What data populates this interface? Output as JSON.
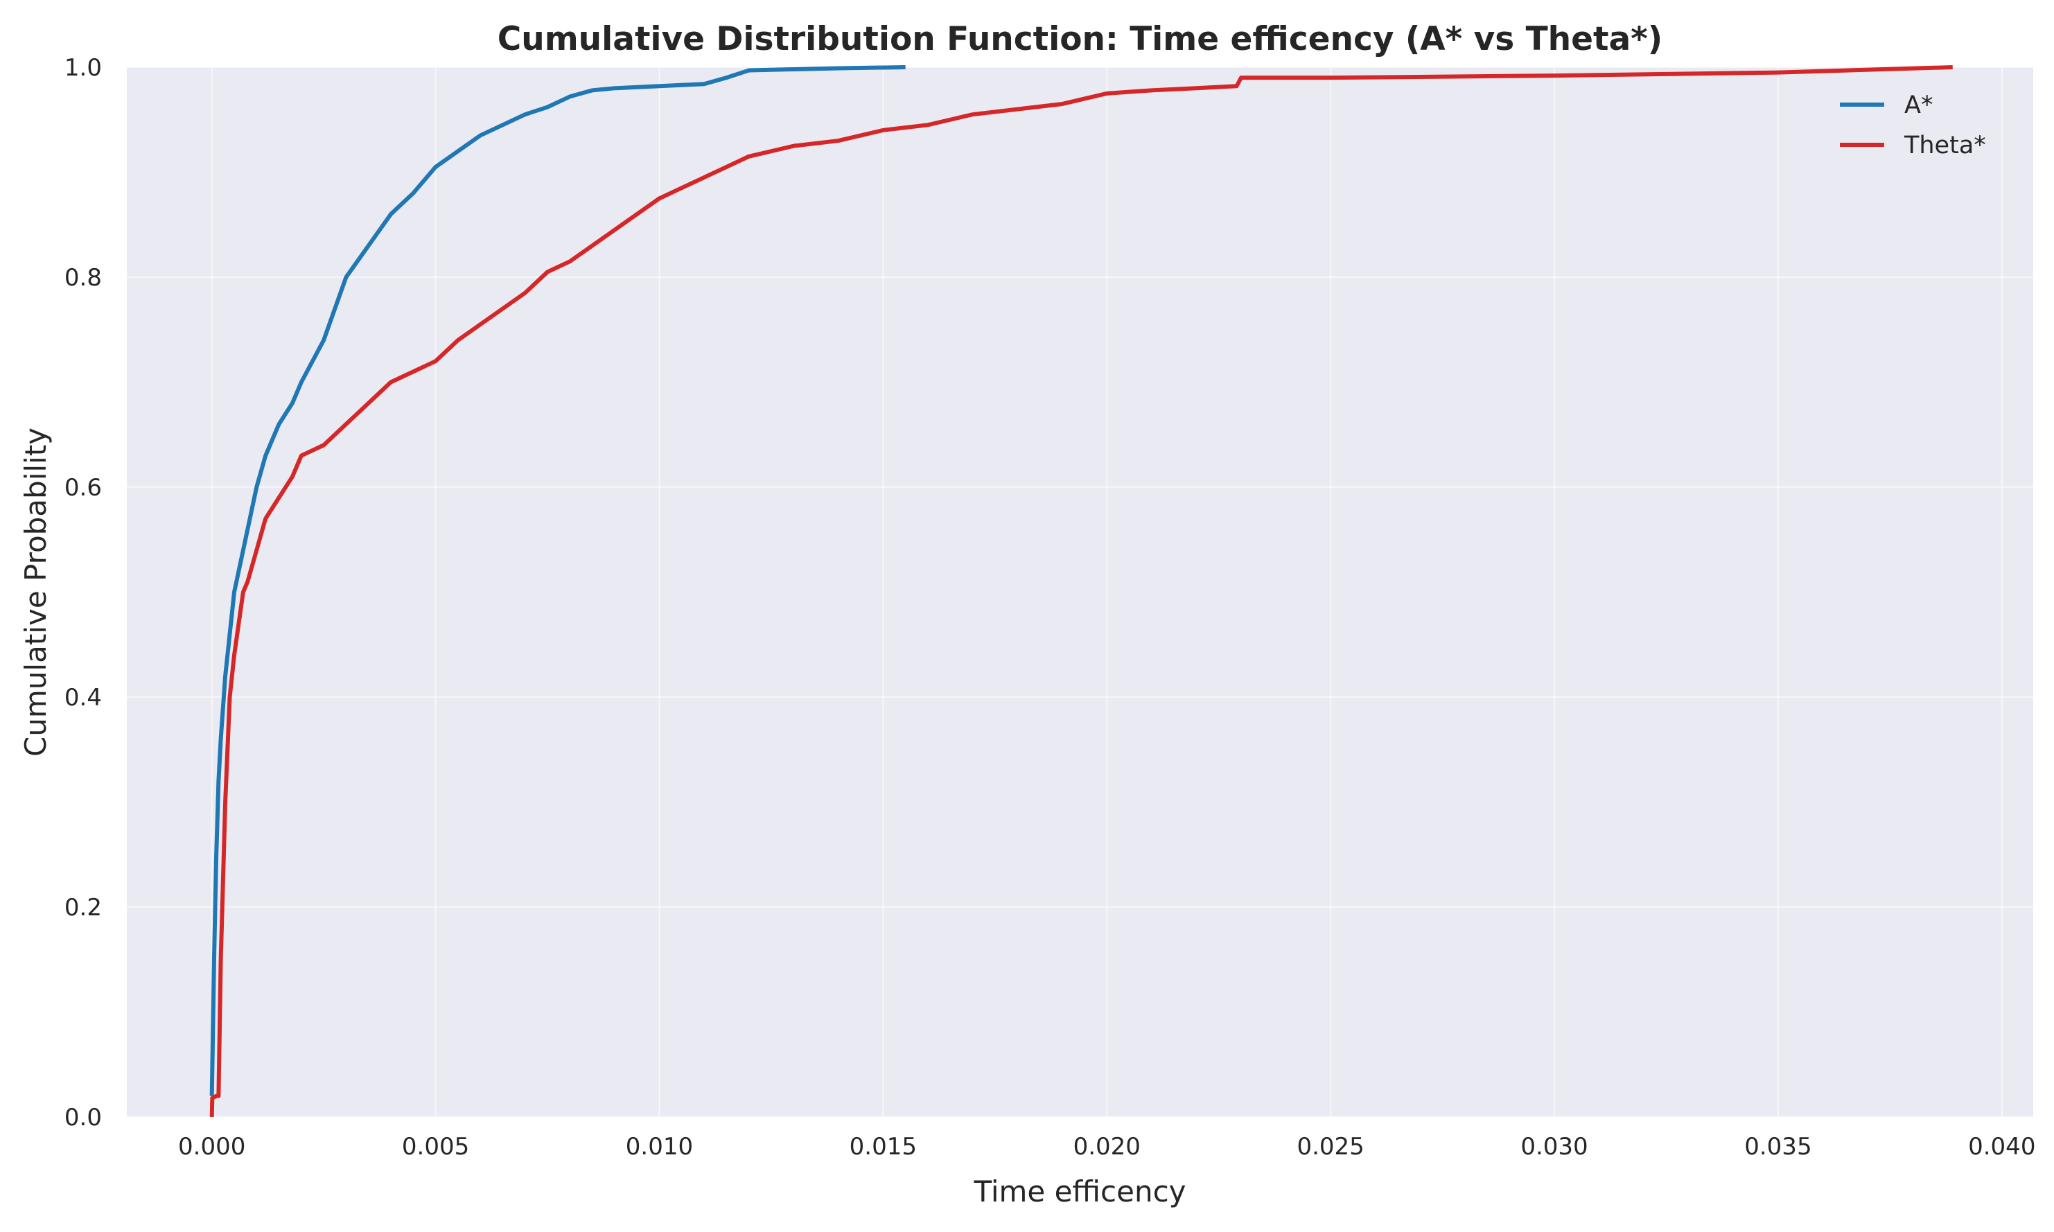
{
  "chart_data": {
    "type": "line",
    "title": "Cumulative Distribution Function: Time efficency (A* vs Theta*)",
    "xlabel": "Time efficency",
    "ylabel": "Cumulative Probability",
    "xlim": [
      -0.0019,
      0.0407
    ],
    "ylim": [
      0.0,
      1.0
    ],
    "x_ticks": [
      0.0,
      0.005,
      0.01,
      0.015,
      0.02,
      0.025,
      0.03,
      0.035,
      0.04
    ],
    "x_tick_labels": [
      "0.000",
      "0.005",
      "0.010",
      "0.015",
      "0.020",
      "0.025",
      "0.030",
      "0.035",
      "0.040"
    ],
    "y_ticks": [
      0.0,
      0.2,
      0.4,
      0.6,
      0.8,
      1.0
    ],
    "y_tick_labels": [
      "0.0",
      "0.2",
      "0.4",
      "0.6",
      "0.8",
      "1.0"
    ],
    "grid": true,
    "background": "#eaeaf2",
    "legend_position": "top-right",
    "series": [
      {
        "name": "A*",
        "color": "#1f77b4",
        "x": [
          0.0,
          5e-05,
          0.0001,
          0.00015,
          0.0002,
          0.0003,
          0.0004,
          0.0005,
          0.0006,
          0.0008,
          0.001,
          0.0012,
          0.0015,
          0.0018,
          0.002,
          0.0025,
          0.003,
          0.0035,
          0.004,
          0.0045,
          0.005,
          0.0055,
          0.006,
          0.0065,
          0.007,
          0.0075,
          0.008,
          0.0085,
          0.009,
          0.01,
          0.011,
          0.0115,
          0.012,
          0.013,
          0.014,
          0.0155
        ],
        "y": [
          0.02,
          0.15,
          0.25,
          0.32,
          0.36,
          0.42,
          0.46,
          0.5,
          0.52,
          0.56,
          0.6,
          0.63,
          0.66,
          0.68,
          0.7,
          0.74,
          0.8,
          0.83,
          0.86,
          0.88,
          0.905,
          0.92,
          0.935,
          0.945,
          0.955,
          0.962,
          0.972,
          0.978,
          0.98,
          0.982,
          0.984,
          0.99,
          0.997,
          0.998,
          0.999,
          1.0
        ]
      },
      {
        "name": "Theta*",
        "color": "#d62728",
        "x": [
          0.0,
          1e-05,
          0.0001,
          0.00015,
          0.0002,
          0.0003,
          0.0004,
          0.0005,
          0.0006,
          0.0007,
          0.0008,
          0.001,
          0.0012,
          0.0015,
          0.0018,
          0.002,
          0.0025,
          0.003,
          0.0035,
          0.004,
          0.0045,
          0.005,
          0.0055,
          0.006,
          0.0065,
          0.007,
          0.0075,
          0.008,
          0.0085,
          0.009,
          0.0095,
          0.01,
          0.0105,
          0.011,
          0.0115,
          0.012,
          0.013,
          0.014,
          0.015,
          0.016,
          0.0165,
          0.017,
          0.018,
          0.019,
          0.0195,
          0.02,
          0.021,
          0.022,
          0.0229,
          0.023,
          0.025,
          0.03,
          0.035,
          0.0389
        ],
        "y": [
          0.0,
          0.018,
          0.02,
          0.02,
          0.15,
          0.3,
          0.4,
          0.44,
          0.47,
          0.5,
          0.51,
          0.54,
          0.57,
          0.59,
          0.61,
          0.63,
          0.64,
          0.66,
          0.68,
          0.7,
          0.71,
          0.72,
          0.74,
          0.755,
          0.77,
          0.785,
          0.805,
          0.815,
          0.83,
          0.845,
          0.86,
          0.875,
          0.885,
          0.895,
          0.905,
          0.915,
          0.925,
          0.93,
          0.94,
          0.945,
          0.95,
          0.955,
          0.96,
          0.965,
          0.97,
          0.975,
          0.978,
          0.98,
          0.982,
          0.99,
          0.99,
          0.992,
          0.995,
          1.0
        ]
      }
    ]
  }
}
